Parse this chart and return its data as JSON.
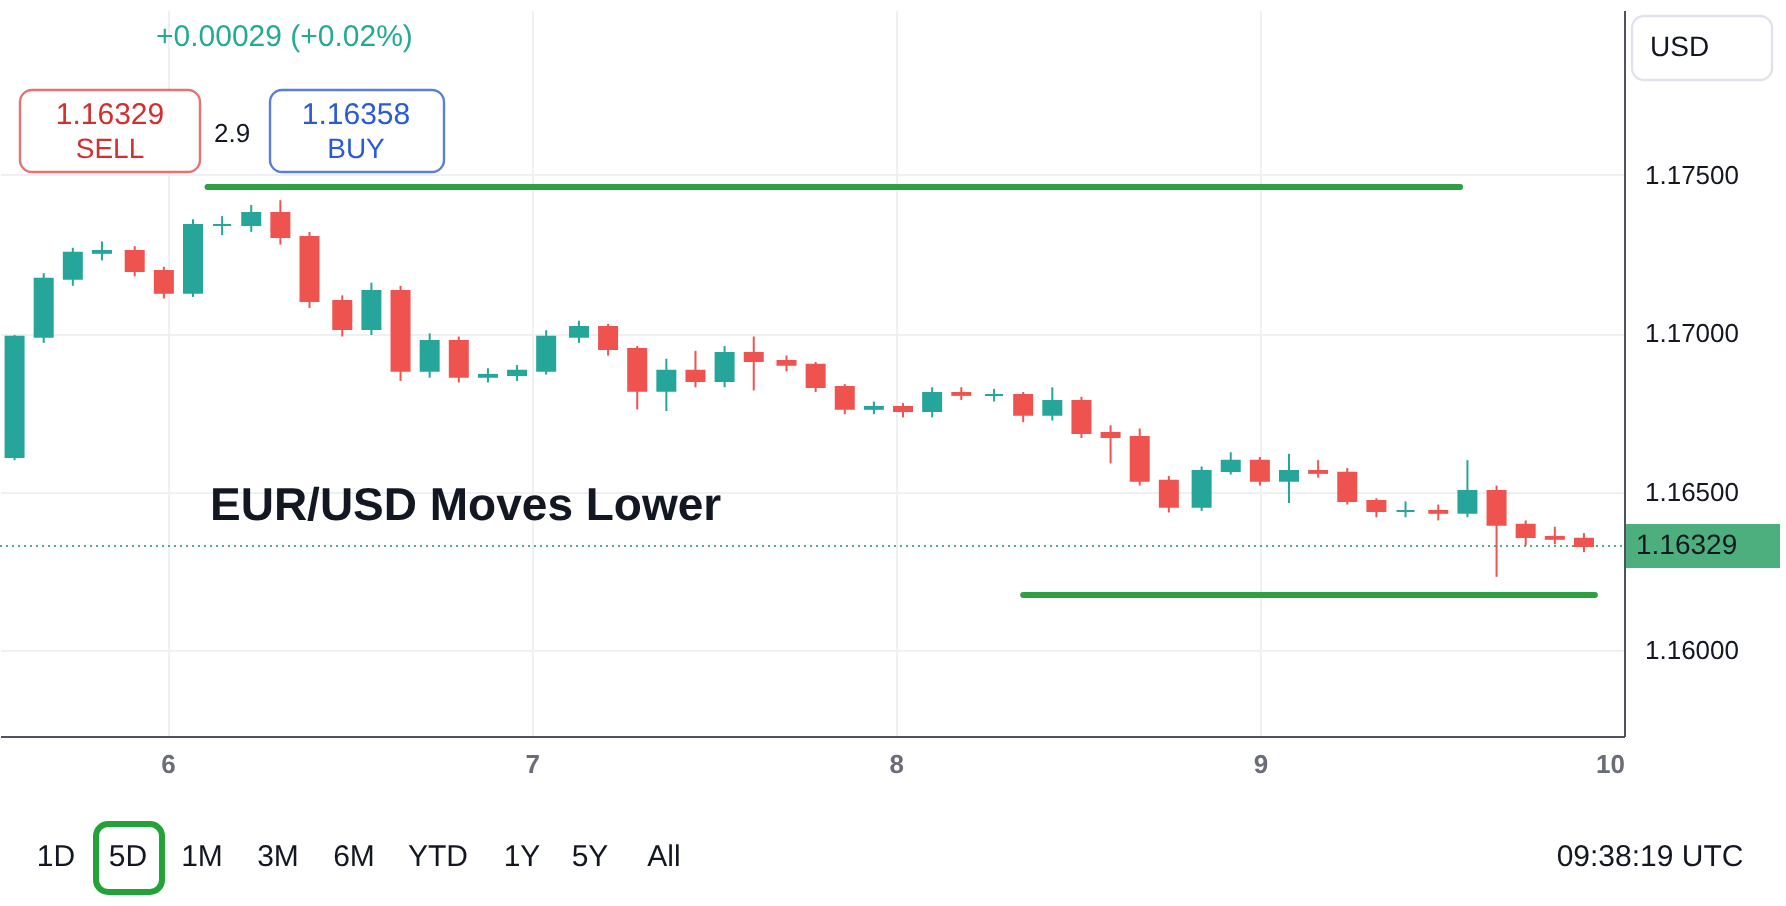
{
  "chart_data": {
    "type": "candlestick",
    "title": "EUR/USD Moves Lower",
    "x": [
      5.58,
      5.66,
      5.74,
      5.82,
      5.91,
      5.99,
      6.07,
      6.15,
      6.23,
      6.31,
      6.39,
      6.48,
      6.56,
      6.64,
      6.72,
      6.8,
      6.88,
      6.96,
      7.04,
      7.13,
      7.21,
      7.29,
      7.37,
      7.45,
      7.53,
      7.61,
      7.7,
      7.78,
      7.86,
      7.94,
      8.02,
      8.1,
      8.18,
      8.27,
      8.35,
      8.43,
      8.51,
      8.59,
      8.67,
      8.75,
      8.84,
      8.92,
      9.0,
      9.08,
      9.16,
      9.24,
      9.32,
      9.4,
      9.49,
      9.57,
      9.65,
      9.73,
      9.81,
      9.89
    ],
    "ohlc": [
      [
        1.1661,
        1.16995,
        1.166,
        1.16989
      ],
      [
        1.16989,
        1.1719,
        1.1697,
        1.17172
      ],
      [
        1.17172,
        1.1727,
        1.1715,
        1.17254
      ],
      [
        1.17254,
        1.1729,
        1.1723,
        1.1726
      ],
      [
        1.1726,
        1.17275,
        1.1718,
        1.17197
      ],
      [
        1.17197,
        1.1721,
        1.1711,
        1.17128
      ],
      [
        1.17128,
        1.1736,
        1.17115,
        1.17342
      ],
      [
        1.17342,
        1.1737,
        1.1731,
        1.17342
      ],
      [
        1.17342,
        1.17405,
        1.1732,
        1.1738
      ],
      [
        1.1738,
        1.1742,
        1.1728,
        1.17304
      ],
      [
        1.17304,
        1.1732,
        1.1708,
        1.17102
      ],
      [
        1.17102,
        1.1712,
        1.1699,
        1.17014
      ],
      [
        1.17014,
        1.1716,
        1.16995,
        1.17134
      ],
      [
        1.17134,
        1.1715,
        1.1685,
        1.16882
      ],
      [
        1.16882,
        1.17,
        1.1686,
        1.16976
      ],
      [
        1.16976,
        1.1699,
        1.16845,
        1.16863
      ],
      [
        1.16863,
        1.1689,
        1.16845,
        1.16869
      ],
      [
        1.16869,
        1.169,
        1.1685,
        1.16882
      ],
      [
        1.16882,
        1.1701,
        1.1687,
        1.16989
      ],
      [
        1.16989,
        1.1704,
        1.1697,
        1.1702
      ],
      [
        1.1702,
        1.1703,
        1.1693,
        1.16951
      ],
      [
        1.16951,
        1.1696,
        1.1676,
        1.16819
      ],
      [
        1.16819,
        1.1692,
        1.16755,
        1.16882
      ],
      [
        1.16882,
        1.16945,
        1.1683,
        1.1685
      ],
      [
        1.1685,
        1.1696,
        1.1683,
        1.16938
      ],
      [
        1.16938,
        1.1699,
        1.1682,
        1.16913
      ],
      [
        1.16913,
        1.1693,
        1.1688,
        1.16901
      ],
      [
        1.16901,
        1.1691,
        1.16815,
        1.16831
      ],
      [
        1.16831,
        1.1684,
        1.16745,
        1.16762
      ],
      [
        1.16762,
        1.16785,
        1.16745,
        1.16768
      ],
      [
        1.16768,
        1.1678,
        1.16735,
        1.16755
      ],
      [
        1.16755,
        1.1683,
        1.16735,
        1.16812
      ],
      [
        1.16812,
        1.1683,
        1.1679,
        1.16806
      ],
      [
        1.16806,
        1.16825,
        1.16785,
        1.16806
      ],
      [
        1.16806,
        1.16815,
        1.1672,
        1.16743
      ],
      [
        1.16743,
        1.1683,
        1.16725,
        1.16787
      ],
      [
        1.16787,
        1.168,
        1.1667,
        1.16686
      ],
      [
        1.16686,
        1.1671,
        1.1659,
        1.16673
      ],
      [
        1.16673,
        1.167,
        1.1652,
        1.16535
      ],
      [
        1.16535,
        1.1655,
        1.16435,
        1.16453
      ],
      [
        1.16453,
        1.1658,
        1.1644,
        1.16566
      ],
      [
        1.16566,
        1.16625,
        1.16555,
        1.16598
      ],
      [
        1.16598,
        1.1661,
        1.1652,
        1.16535
      ],
      [
        1.16535,
        1.1662,
        1.16465,
        1.16566
      ],
      [
        1.16566,
        1.166,
        1.16545,
        1.1656
      ],
      [
        1.1656,
        1.16575,
        1.1646,
        1.16471
      ],
      [
        1.16471,
        1.1648,
        1.1642,
        1.1644
      ],
      [
        1.1644,
        1.1647,
        1.1642,
        1.1644
      ],
      [
        1.1644,
        1.1646,
        1.1641,
        1.16434
      ],
      [
        1.16434,
        1.166,
        1.1642,
        1.16503
      ],
      [
        1.16503,
        1.1652,
        1.16232,
        1.16396
      ],
      [
        1.16396,
        1.1641,
        1.1633,
        1.16358
      ],
      [
        1.16358,
        1.1639,
        1.16335,
        1.16352
      ],
      [
        1.16352,
        1.1637,
        1.1631,
        1.16329
      ]
    ],
    "series": [
      {
        "type": "line",
        "color": "#2ea043",
        "x": [
          6.11,
          9.55
        ],
        "values": [
          1.17462,
          1.17462
        ]
      },
      {
        "type": "line",
        "color": "#2ea043",
        "x": [
          8.35,
          9.92
        ],
        "values": [
          1.16175,
          1.16175
        ]
      }
    ],
    "xlim": [
      5.54,
      10.0
    ],
    "xticks": [
      6,
      7,
      8,
      9,
      10
    ],
    "ylim": [
      1.1573,
      1.1802
    ],
    "yticks": [
      {
        "value": 1.16,
        "label": "1.16000"
      },
      {
        "value": 1.165,
        "label": "1.16500"
      },
      {
        "value": 1.17,
        "label": "1.17000"
      },
      {
        "value": 1.175,
        "label": "1.17500"
      }
    ],
    "ref_lines": [
      {
        "axis": "y",
        "value": 1.16329,
        "label": "1.16329",
        "color": "#4caf7d",
        "line_style": "dotted"
      }
    ],
    "grid": true,
    "annotations": [
      "+0.00029 (+0.02%)",
      "1.16329",
      "SELL",
      "2.9",
      "1.16358",
      "BUY",
      "USD",
      "1D",
      "5D",
      "1M",
      "3M",
      "6M",
      "YTD",
      "1Y",
      "5Y",
      "All",
      "09:38:19 UTC"
    ]
  }
}
